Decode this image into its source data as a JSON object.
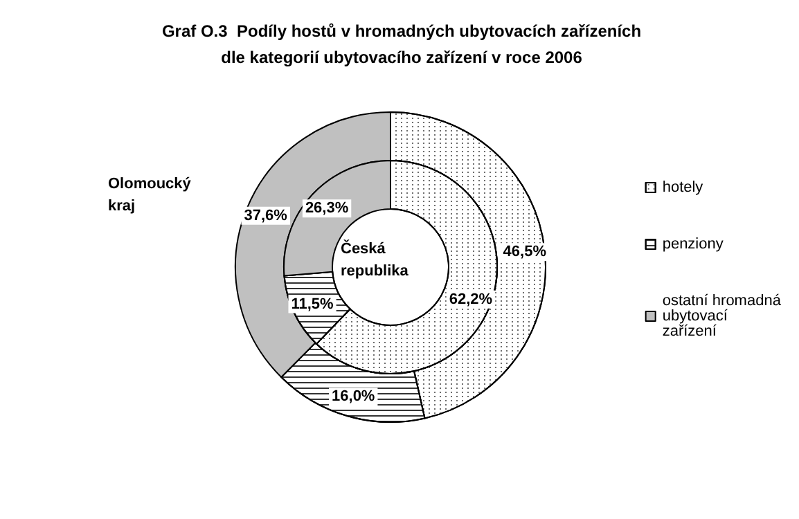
{
  "chart_data": {
    "type": "donut",
    "title": "Graf O.3  Podíly hostů v hromadných ubytovacích zařízeních\ndle kategorií ubytovacího zařízení v roce 2006",
    "categories": [
      "hotely",
      "penziony",
      "ostatní hromadná ubytovací zařízení"
    ],
    "colors": [
      "#ffffff",
      "#ffffff",
      "#c0c0c0"
    ],
    "series": [
      {
        "name": "Olomoucký kraj",
        "values": [
          46.5,
          16.0,
          37.6
        ],
        "value_labels": [
          "46,5%",
          "16,0%",
          "37,6%"
        ]
      },
      {
        "name": "Česká republika",
        "values": [
          62.2,
          11.5,
          26.3
        ],
        "value_labels": [
          "62,2%",
          "11,5%",
          "26,3%"
        ]
      }
    ],
    "legend": "right"
  }
}
